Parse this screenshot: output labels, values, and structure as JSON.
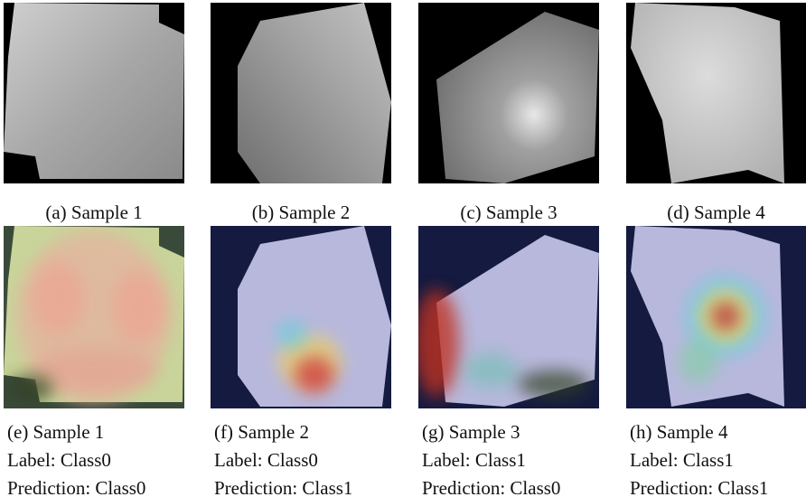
{
  "panels": [
    {
      "caption": "(a) Sample 1"
    },
    {
      "caption": "(b) Sample 2"
    },
    {
      "caption": "(c) Sample 3"
    },
    {
      "caption": "(d) Sample 4"
    }
  ],
  "heatmaps": [
    {
      "caption": "(e) Sample 1",
      "label": "Label: Class0",
      "prediction": "Prediction: Class0"
    },
    {
      "caption": "(f) Sample 2",
      "label": "Label: Class0",
      "prediction": "Prediction: Class1"
    },
    {
      "caption": "(g) Sample 3",
      "label": "Label: Class1",
      "prediction": "Prediction: Class0"
    },
    {
      "caption": "(h) Sample 4",
      "label": "Label: Class1",
      "prediction": "Prediction: Class1"
    }
  ]
}
